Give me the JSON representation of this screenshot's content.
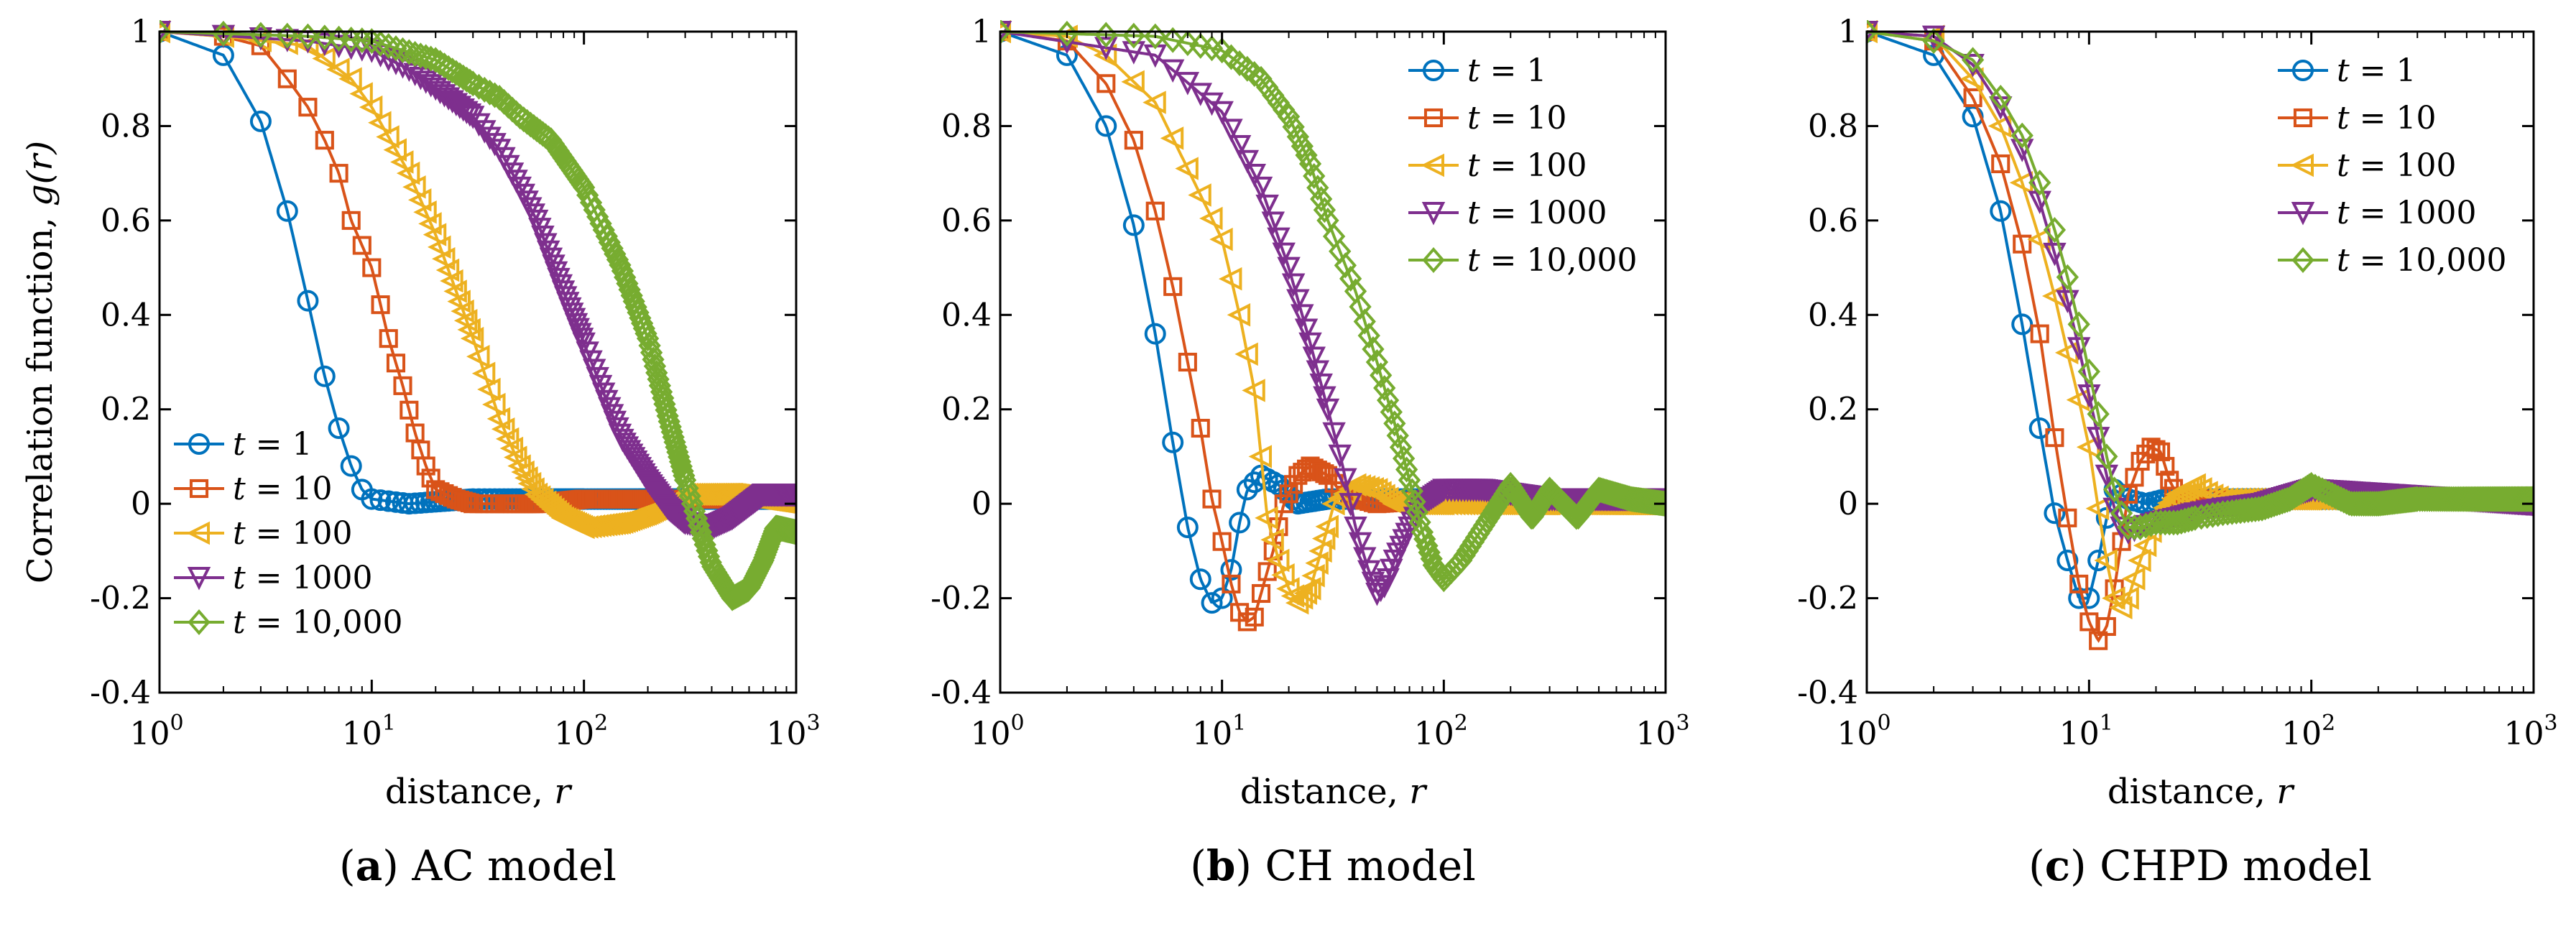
{
  "figure": {
    "panels": [
      {
        "caption_letter": "a",
        "caption_text": "AC model",
        "legend_position": "bottom-left",
        "xlabel": "distance, r",
        "ylabel": "Correlation function, g(r)"
      },
      {
        "caption_letter": "b",
        "caption_text": "CH model",
        "legend_position": "top-right",
        "xlabel": "distance, r",
        "ylabel": ""
      },
      {
        "caption_letter": "c",
        "caption_text": "CHPD model",
        "legend_position": "top-right",
        "xlabel": "distance, r",
        "ylabel": ""
      }
    ]
  },
  "chart_data": [
    {
      "type": "line",
      "caption": "(a) AC model",
      "xlabel": "distance, r",
      "ylabel": "Correlation function, g(r)",
      "xscale": "log",
      "xlim": [
        1,
        1000
      ],
      "ylim": [
        -0.4,
        1
      ],
      "xticks": [
        "10^0",
        "10^1",
        "10^2",
        "10^3"
      ],
      "yticks": [
        -0.4,
        -0.2,
        0,
        0.2,
        0.4,
        0.6,
        0.8,
        1
      ],
      "grid": false,
      "legend": "bottom-left",
      "series": [
        {
          "name": "t = 1",
          "color": "#0072BD",
          "marker": "circle",
          "x": [
            1,
            2,
            3,
            4,
            5,
            6,
            7,
            8,
            9,
            10,
            15,
            30,
            100,
            300,
            1000
          ],
          "y": [
            1,
            0.95,
            0.81,
            0.62,
            0.43,
            0.27,
            0.16,
            0.08,
            0.03,
            0.01,
            0.0,
            0.01,
            0.01,
            0.01,
            0.01
          ]
        },
        {
          "name": "t = 10",
          "color": "#D95319",
          "marker": "square",
          "x": [
            1,
            2,
            3,
            4,
            5,
            6,
            7,
            8,
            10,
            12,
            14,
            16,
            18,
            20,
            25,
            30,
            40,
            60,
            100,
            300,
            1000
          ],
          "y": [
            1,
            0.99,
            0.97,
            0.9,
            0.84,
            0.77,
            0.7,
            0.6,
            0.5,
            0.35,
            0.25,
            0.15,
            0.08,
            0.03,
            0.01,
            0.0,
            0.0,
            0.0,
            0.01,
            0.01,
            0.01
          ]
        },
        {
          "name": "t = 100",
          "color": "#EDB120",
          "marker": "triangle-left",
          "x": [
            1,
            2,
            5,
            8,
            10,
            15,
            20,
            25,
            30,
            40,
            50,
            60,
            80,
            100,
            150,
            200,
            300,
            500,
            1000
          ],
          "y": [
            1,
            0.99,
            0.97,
            0.9,
            0.84,
            0.7,
            0.57,
            0.45,
            0.35,
            0.18,
            0.08,
            0.02,
            -0.03,
            -0.05,
            -0.04,
            -0.02,
            0.02,
            0.02,
            0.0
          ]
        },
        {
          "name": "t = 1000",
          "color": "#7E2F8E",
          "marker": "triangle-down",
          "x": [
            1,
            5,
            10,
            15,
            20,
            30,
            40,
            50,
            60,
            80,
            100,
            120,
            150,
            200,
            250,
            300,
            400,
            500,
            700,
            1000
          ],
          "y": [
            1,
            0.98,
            0.96,
            0.92,
            0.88,
            0.82,
            0.75,
            0.67,
            0.6,
            0.45,
            0.34,
            0.25,
            0.14,
            0.05,
            -0.01,
            -0.04,
            -0.05,
            -0.03,
            0.02,
            0.02
          ]
        },
        {
          "name": "t = 10,000",
          "color": "#77AC30",
          "marker": "diamond",
          "x": [
            1,
            5,
            10,
            20,
            30,
            40,
            50,
            70,
            100,
            150,
            200,
            250,
            300,
            350,
            400,
            500,
            600,
            700,
            800,
            1000
          ],
          "y": [
            1,
            0.99,
            0.98,
            0.94,
            0.89,
            0.86,
            0.82,
            0.77,
            0.67,
            0.5,
            0.35,
            0.18,
            0.05,
            -0.05,
            -0.13,
            -0.2,
            -0.18,
            -0.12,
            -0.05,
            -0.06
          ]
        }
      ]
    },
    {
      "type": "line",
      "caption": "(b) CH model",
      "xlabel": "distance, r",
      "ylabel": "",
      "xscale": "log",
      "xlim": [
        1,
        1000
      ],
      "ylim": [
        -0.4,
        1
      ],
      "xticks": [
        "10^0",
        "10^1",
        "10^2",
        "10^3"
      ],
      "yticks": [
        -0.4,
        -0.2,
        0,
        0.2,
        0.4,
        0.6,
        0.8,
        1
      ],
      "grid": false,
      "legend": "top-right",
      "series": [
        {
          "name": "t = 1",
          "color": "#0072BD",
          "marker": "circle",
          "x": [
            1,
            2,
            3,
            4,
            5,
            6,
            7,
            8,
            9,
            10,
            11,
            12,
            13,
            15,
            18,
            22,
            30,
            50,
            100,
            1000
          ],
          "y": [
            1,
            0.95,
            0.8,
            0.59,
            0.36,
            0.13,
            -0.05,
            -0.16,
            -0.21,
            -0.2,
            -0.14,
            -0.04,
            0.03,
            0.06,
            0.04,
            0.0,
            0.01,
            0.01,
            0.01,
            0.01
          ]
        },
        {
          "name": "t = 10",
          "color": "#D95319",
          "marker": "square",
          "x": [
            1,
            2,
            3,
            4,
            5,
            6,
            7,
            8,
            9,
            10,
            11,
            12,
            13,
            14,
            15,
            17,
            19,
            22,
            25,
            30,
            35,
            50,
            100,
            1000
          ],
          "y": [
            1,
            0.98,
            0.89,
            0.77,
            0.62,
            0.46,
            0.3,
            0.16,
            0.01,
            -0.08,
            -0.17,
            -0.23,
            -0.25,
            -0.24,
            -0.19,
            -0.1,
            0.0,
            0.06,
            0.08,
            0.06,
            0.02,
            0.0,
            0.01,
            0.01
          ]
        },
        {
          "name": "t = 100",
          "color": "#EDB120",
          "marker": "triangle-left",
          "x": [
            1,
            2,
            3,
            5,
            7,
            10,
            12,
            14,
            15,
            16,
            18,
            20,
            22,
            25,
            28,
            32,
            40,
            50,
            60,
            100,
            1000
          ],
          "y": [
            1,
            0.99,
            0.95,
            0.85,
            0.71,
            0.56,
            0.4,
            0.24,
            0.1,
            -0.03,
            -0.12,
            -0.18,
            -0.21,
            -0.18,
            -0.1,
            0.0,
            0.04,
            0.03,
            0.0,
            0.0,
            0.0
          ]
        },
        {
          "name": "t = 1000",
          "color": "#7E2F8E",
          "marker": "triangle-down",
          "x": [
            1,
            5,
            10,
            15,
            20,
            25,
            30,
            35,
            40,
            45,
            50,
            55,
            60,
            70,
            80,
            100,
            150,
            300,
            1000
          ],
          "y": [
            1,
            0.95,
            0.83,
            0.67,
            0.5,
            0.34,
            0.2,
            0.08,
            -0.05,
            -0.13,
            -0.19,
            -0.17,
            -0.12,
            -0.05,
            0.0,
            0.03,
            0.03,
            0.01,
            0.01
          ]
        },
        {
          "name": "t = 10,000",
          "color": "#77AC30",
          "marker": "diamond",
          "x": [
            1,
            5,
            10,
            15,
            20,
            25,
            30,
            40,
            50,
            60,
            70,
            80,
            90,
            100,
            120,
            150,
            200,
            250,
            300,
            400,
            500,
            700,
            1000
          ],
          "y": [
            1,
            0.99,
            0.96,
            0.9,
            0.82,
            0.72,
            0.6,
            0.45,
            0.3,
            0.17,
            0.05,
            -0.06,
            -0.13,
            -0.16,
            -0.12,
            -0.05,
            0.04,
            -0.03,
            0.03,
            -0.03,
            0.03,
            0.01,
            0.0
          ]
        }
      ]
    },
    {
      "type": "line",
      "caption": "(c) CHPD model",
      "xlabel": "distance, r",
      "ylabel": "",
      "xscale": "log",
      "xlim": [
        1,
        1000
      ],
      "ylim": [
        -0.4,
        1
      ],
      "xticks": [
        "10^0",
        "10^1",
        "10^2",
        "10^3"
      ],
      "yticks": [
        -0.4,
        -0.2,
        0,
        0.2,
        0.4,
        0.6,
        0.8,
        1
      ],
      "grid": false,
      "legend": "top-right",
      "series": [
        {
          "name": "t = 1",
          "color": "#0072BD",
          "marker": "circle",
          "x": [
            1,
            2,
            3,
            4,
            5,
            6,
            7,
            8,
            9,
            10,
            11,
            12,
            13,
            15,
            18,
            22,
            30,
            50,
            100,
            1000
          ],
          "y": [
            1,
            0.95,
            0.82,
            0.62,
            0.38,
            0.16,
            -0.02,
            -0.12,
            -0.2,
            -0.2,
            -0.12,
            -0.03,
            0.03,
            0.01,
            0.0,
            0.01,
            0.01,
            0.01,
            0.01,
            0.01
          ]
        },
        {
          "name": "t = 10",
          "color": "#D95319",
          "marker": "square",
          "x": [
            1,
            2,
            3,
            4,
            5,
            6,
            7,
            8,
            9,
            10,
            11,
            12,
            13,
            14,
            15,
            17,
            19,
            21,
            23,
            26,
            30,
            40,
            100,
            1000
          ],
          "y": [
            1,
            0.98,
            0.86,
            0.72,
            0.55,
            0.36,
            0.14,
            -0.03,
            -0.17,
            -0.25,
            -0.29,
            -0.26,
            -0.18,
            -0.08,
            0.02,
            0.09,
            0.12,
            0.11,
            0.05,
            0.0,
            0.01,
            0.01,
            0.01,
            0.01
          ]
        },
        {
          "name": "t = 100",
          "color": "#EDB120",
          "marker": "triangle-left",
          "x": [
            1,
            2,
            3,
            4,
            5,
            6,
            7,
            8,
            9,
            10,
            11,
            12,
            13,
            14,
            15,
            17,
            20,
            25,
            30,
            35,
            40,
            50,
            100,
            1000
          ],
          "y": [
            1,
            0.99,
            0.9,
            0.8,
            0.68,
            0.56,
            0.44,
            0.32,
            0.22,
            0.12,
            -0.01,
            -0.12,
            -0.2,
            -0.22,
            -0.2,
            -0.12,
            -0.03,
            0.02,
            0.04,
            0.02,
            0.01,
            0.01,
            0.01,
            0.01
          ]
        },
        {
          "name": "t = 1000",
          "color": "#7E2F8E",
          "marker": "triangle-down",
          "x": [
            1,
            2,
            3,
            4,
            5,
            6,
            7,
            8,
            9,
            10,
            11,
            12,
            13,
            14,
            15,
            17,
            20,
            25,
            30,
            40,
            60,
            100,
            1000
          ],
          "y": [
            1,
            0.99,
            0.93,
            0.84,
            0.75,
            0.64,
            0.53,
            0.43,
            0.33,
            0.23,
            0.14,
            0.06,
            -0.01,
            -0.05,
            -0.06,
            -0.05,
            -0.04,
            -0.03,
            -0.02,
            -0.01,
            0.0,
            0.03,
            0.0
          ]
        },
        {
          "name": "t = 10,000",
          "color": "#77AC30",
          "marker": "diamond",
          "x": [
            1,
            2,
            3,
            4,
            5,
            6,
            7,
            8,
            9,
            10,
            11,
            12,
            13,
            14,
            15,
            17,
            20,
            25,
            30,
            40,
            60,
            80,
            100,
            150,
            200,
            300,
            500,
            1000
          ],
          "y": [
            1,
            0.98,
            0.94,
            0.86,
            0.78,
            0.68,
            0.58,
            0.48,
            0.38,
            0.28,
            0.19,
            0.1,
            0.03,
            -0.02,
            -0.05,
            -0.05,
            -0.04,
            -0.04,
            -0.03,
            -0.02,
            -0.01,
            0.01,
            0.04,
            0.0,
            0.0,
            0.01,
            0.01,
            0.01
          ]
        }
      ]
    }
  ]
}
